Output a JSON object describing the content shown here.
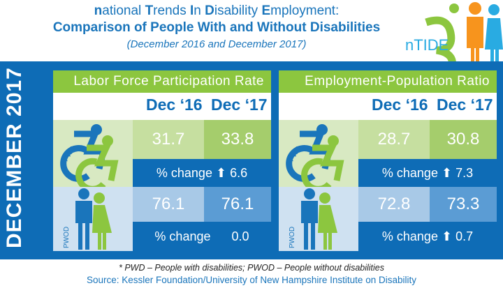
{
  "header": {
    "title_parts": [
      [
        "n",
        "ational "
      ],
      [
        "T",
        "rends "
      ],
      [
        "I",
        "n "
      ],
      [
        "D",
        "isability "
      ],
      [
        "E",
        "mployment:"
      ]
    ],
    "subtitle": "Comparison of People With and Without Disabilities",
    "period": "(December 2016 and December 2017)"
  },
  "logo": {
    "text": "nTIDE"
  },
  "side_label": "DECEMBER 2017",
  "columns": [
    "Dec ‘16",
    "Dec  ‘17"
  ],
  "panels": [
    {
      "title": "Labor Force Participation Rate",
      "pwd_label": "PWD",
      "pwod_label": "PWOD",
      "pwd": [
        "31.7",
        "33.8"
      ],
      "pwd_change_label": "% change",
      "pwd_change_dir": "up",
      "pwd_change": "6.6",
      "pwod": [
        "76.1",
        "76.1"
      ],
      "pwod_change_label": "% change",
      "pwod_change_dir": "none",
      "pwod_change": "0.0"
    },
    {
      "title": "Employment-Population Ratio",
      "pwd_label": "PWD",
      "pwod_label": "PWOD",
      "pwd": [
        "28.7",
        "30.8"
      ],
      "pwd_change_label": "% change",
      "pwd_change_dir": "up",
      "pwd_change": "7.3",
      "pwod": [
        "72.8",
        "73.3"
      ],
      "pwod_change_label": "% change",
      "pwod_change_dir": "up",
      "pwod_change": "0.7"
    }
  ],
  "footnote": "* PWD – People with disabilities;  PWOD – People without disabilities",
  "source": "Source: Kessler Foundation/University of New Hampshire Institute on Disability",
  "colors": {
    "blue": "#0e6cb6",
    "green": "#8cc63f",
    "orange": "#f7941d",
    "light_blue": "#29abe2"
  }
}
